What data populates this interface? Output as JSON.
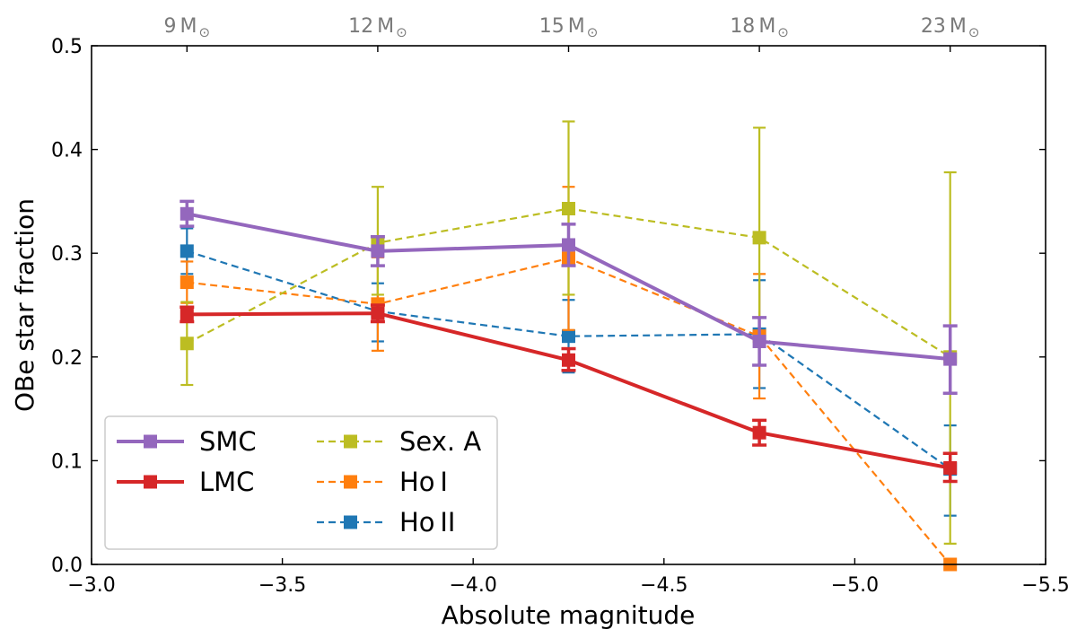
{
  "chart_data": {
    "type": "line",
    "title": "",
    "xlabel": "Absolute magnitude",
    "ylabel": "OBe star fraction",
    "xlim": [
      -3.0,
      -5.5
    ],
    "ylim": [
      0.0,
      0.5
    ],
    "x_ticks": [
      -3.0,
      -3.5,
      -4.0,
      -4.5,
      -5.0,
      -5.5
    ],
    "x_tick_labels": [
      "−3.0",
      "−3.5",
      "−4.0",
      "−4.5",
      "−5.0",
      "−5.5"
    ],
    "y_ticks": [
      0.0,
      0.1,
      0.2,
      0.3,
      0.4,
      0.5
    ],
    "y_tick_labels": [
      "0.0",
      "0.1",
      "0.2",
      "0.3",
      "0.4",
      "0.5"
    ],
    "top_axis": {
      "positions": [
        -3.25,
        -3.75,
        -4.25,
        -4.75,
        -5.25
      ],
      "labels": [
        {
          "number": "9",
          "unit": "M",
          "sun": "⊙"
        },
        {
          "number": "12",
          "unit": "M",
          "sun": "⊙"
        },
        {
          "number": "15",
          "unit": "M",
          "sun": "⊙"
        },
        {
          "number": "18",
          "unit": "M",
          "sun": "⊙"
        },
        {
          "number": "23",
          "unit": "M",
          "sun": "⊙"
        }
      ]
    },
    "x": [
      -3.25,
      -3.75,
      -4.25,
      -4.75,
      -5.25
    ],
    "series": [
      {
        "name": "SMC",
        "color": "#9467bd",
        "style": "solid",
        "values": [
          0.338,
          0.302,
          0.308,
          0.215,
          0.198
        ],
        "err_low": [
          0.326,
          0.288,
          0.288,
          0.192,
          0.165
        ],
        "err_high": [
          0.35,
          0.316,
          0.328,
          0.238,
          0.23
        ]
      },
      {
        "name": "LMC",
        "color": "#d62728",
        "style": "solid",
        "values": [
          0.241,
          0.242,
          0.197,
          0.127,
          0.093
        ],
        "err_low": [
          0.234,
          0.234,
          0.187,
          0.115,
          0.08
        ],
        "err_high": [
          0.248,
          0.25,
          0.208,
          0.139,
          0.107
        ]
      },
      {
        "name": "Sex. A",
        "color": "#bcbd22",
        "style": "dashed",
        "values": [
          0.213,
          0.31,
          0.343,
          0.315,
          0.2
        ],
        "err_low": [
          0.173,
          0.26,
          0.26,
          0.215,
          0.02
        ],
        "err_high": [
          0.253,
          0.364,
          0.427,
          0.421,
          0.378
        ]
      },
      {
        "name": "Ho I",
        "color": "#ff7f0e",
        "style": "dashed",
        "values": [
          0.272,
          0.251,
          0.295,
          0.22,
          0.0
        ],
        "err_low": [
          0.252,
          0.206,
          0.226,
          0.16,
          0.0
        ],
        "err_high": [
          0.292,
          0.296,
          0.364,
          0.28,
          0.0
        ]
      },
      {
        "name": "Ho II",
        "color": "#1f77b4",
        "style": "dashed",
        "values": [
          0.302,
          0.244,
          0.22,
          0.222,
          0.092
        ],
        "err_low": [
          0.28,
          0.215,
          0.185,
          0.17,
          0.047
        ],
        "err_high": [
          0.324,
          0.271,
          0.255,
          0.274,
          0.134
        ]
      }
    ],
    "legend": {
      "location": "lower-left",
      "columns": [
        [
          "SMC",
          "LMC"
        ],
        [
          "Sex. A",
          "Ho I",
          "Ho II"
        ]
      ]
    },
    "grid": false
  }
}
